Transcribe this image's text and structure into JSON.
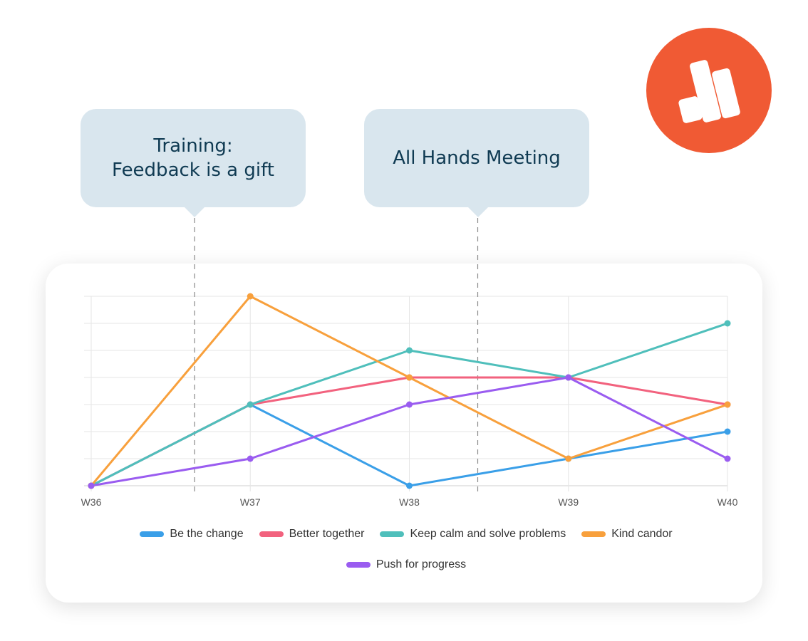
{
  "callouts": [
    {
      "text": "Training:\nFeedback is a gift"
    },
    {
      "text": "All Hands Meeting"
    }
  ],
  "logo": {
    "icon": "bar-chart-logo-icon",
    "color": "#f05a34"
  },
  "chart_data": {
    "type": "line",
    "categories": [
      "W36",
      "W37",
      "W38",
      "W39",
      "W40"
    ],
    "ylim": [
      0,
      7
    ],
    "grid": true,
    "legend_position": "bottom",
    "series": [
      {
        "name": "Be the change",
        "color": "#3a9fe8",
        "values": [
          0,
          3,
          0,
          1,
          2
        ]
      },
      {
        "name": "Better together",
        "color": "#f2627e",
        "values": [
          0,
          3,
          4,
          4,
          3
        ]
      },
      {
        "name": "Keep calm and solve problems",
        "color": "#4fbfbb",
        "values": [
          0,
          3,
          5,
          4,
          6
        ]
      },
      {
        "name": "Kind candor",
        "color": "#f8a03c",
        "values": [
          0,
          7,
          4,
          1,
          3
        ]
      },
      {
        "name": "Push for progress",
        "color": "#9a5cf0",
        "values": [
          0,
          1,
          3,
          4,
          1
        ]
      }
    ],
    "annotations": [
      {
        "label_ref": "Training: Feedback is a gift",
        "x": 36.65
      },
      {
        "label_ref": "All Hands Meeting",
        "x": 38.43
      }
    ]
  }
}
